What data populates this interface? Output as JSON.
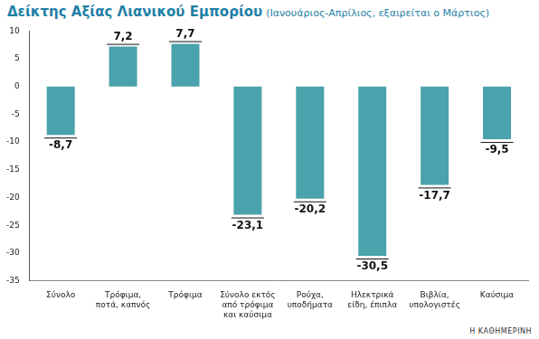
{
  "chart_data": {
    "type": "bar",
    "title": "Δείκτης Αξίας Λιανικού Εμπορίου",
    "subtitle": "(Ιανουάριος-Απρίλιος, εξαιρείται ο Μάρτιος)",
    "source": "Η ΚΑΘΗΜΕΡΙΝΗ",
    "categories": [
      "Σύνολο",
      "Τρόφιμα,\nποτά, καπνός",
      "Τρόφιμα",
      "Σύνολο εκτός\nαπό τρόφιμα\nκαι καύσιμα",
      "Ρούχα,\nυποδήματα",
      "Ηλεκτρικά\nείδη, έπιπλα",
      "Βιβλία,\nυπολογιστές",
      "Καύσιμα"
    ],
    "values": [
      -8.7,
      7.2,
      7.7,
      -23.1,
      -20.2,
      -30.5,
      -17.7,
      -9.5
    ],
    "value_labels": [
      "-8,7",
      "7,2",
      "7,7",
      "-23,1",
      "-20,2",
      "-30,5",
      "-17,7",
      "-9,5"
    ],
    "color": "#4aa3ac",
    "ylim": [
      -35,
      10
    ],
    "yticks": [
      -35,
      -30,
      -25,
      -20,
      -15,
      -10,
      -5,
      0,
      5,
      10
    ],
    "grid": false,
    "data_labels": true
  }
}
